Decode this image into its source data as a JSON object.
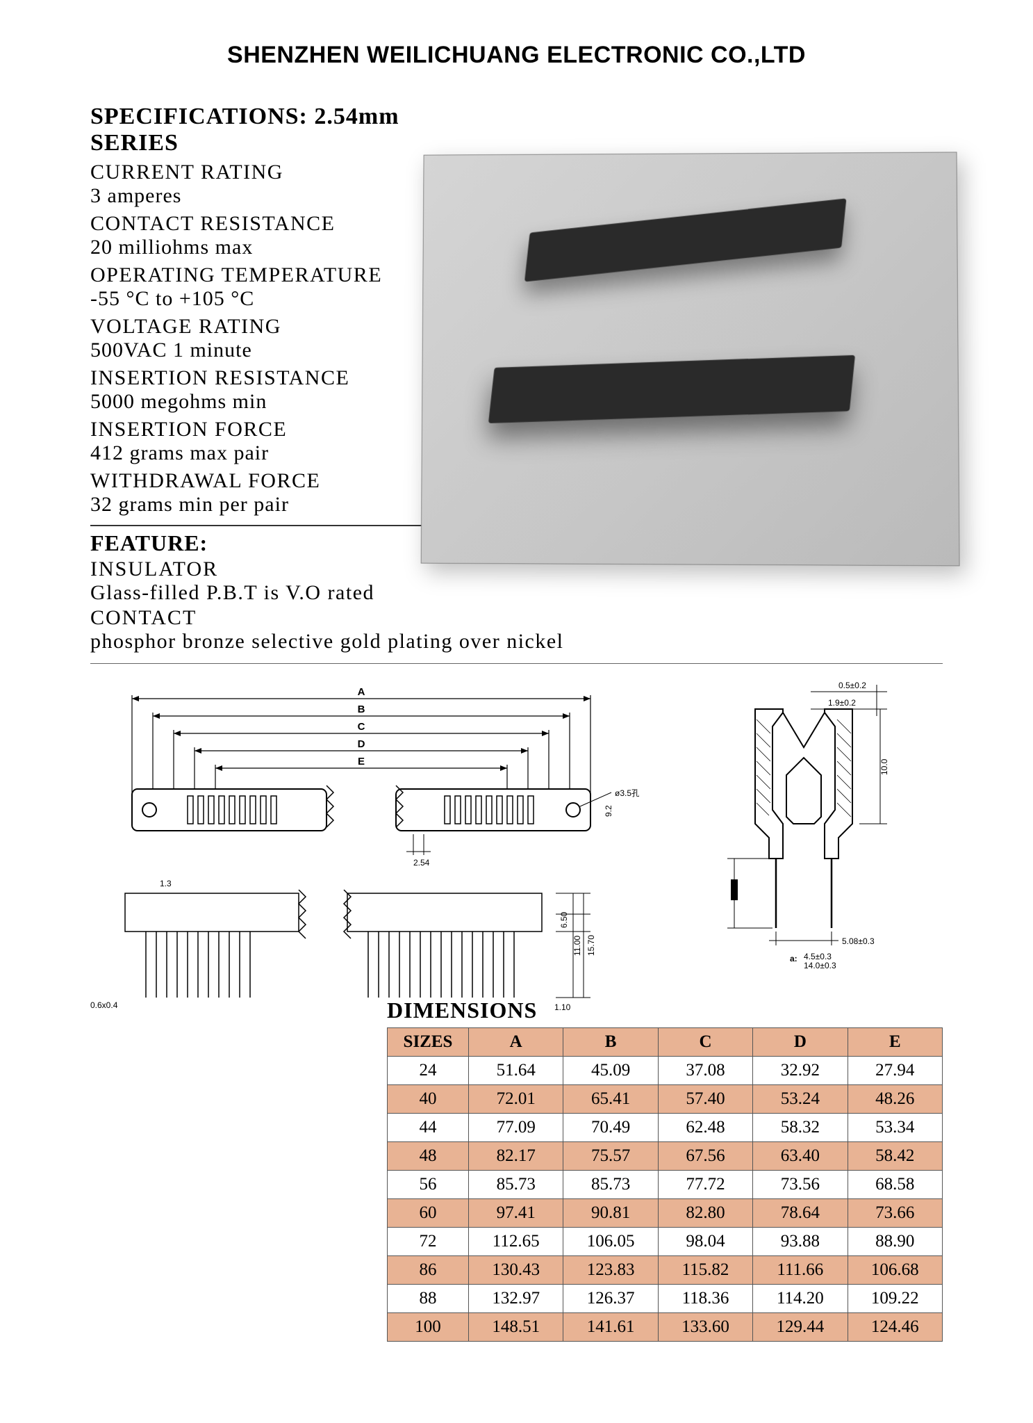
{
  "company": "SHENZHEN WEILICHUANG ELECTRONIC CO.,LTD",
  "spec_heading": "SPECIFICATIONS: 2.54mm SERIES",
  "specs": {
    "current_rating_label": "CURRENT RATING",
    "current_rating_value": "3 amperes",
    "contact_resistance_label": "CONTACT RESISTANCE",
    "contact_resistance_value": "20 milliohms max",
    "operating_temp_label": "OPERATING TEMPERATURE",
    "operating_temp_value": "-55 °C to +105 °C",
    "voltage_rating_label": "VOLTAGE RATING",
    "voltage_rating_value": "500VAC 1 minute",
    "insertion_resistance_label": "INSERTION RESISTANCE",
    "insertion_resistance_value": "5000 megohms min",
    "insertion_force_label": "INSERTION FORCE",
    "insertion_force_value": "412 grams max pair",
    "withdrawal_force_label": "WITHDRAWAL FORCE",
    "withdrawal_force_value": "32 grams min per pair"
  },
  "feature_heading": "FEATURE:",
  "features": {
    "insulator_label": "INSULATOR",
    "insulator_value": "Glass-filled P.B.T is V.O rated",
    "contact_label": "CONTACT",
    "contact_value": "phosphor bronze selective gold plating over nickel"
  },
  "diagram": {
    "labels": [
      "A",
      "B",
      "C",
      "D",
      "E"
    ],
    "d_3_5": "ø3.5孔",
    "d_9_2": "9.2",
    "d_2_54": "2.54",
    "d_1_3": "1.3",
    "d_0_6x0_4": "0.6x0.4",
    "d_6_50": "6.50",
    "d_11_00": "11.00",
    "d_15_70": "15.70",
    "d_1_10": "1.10",
    "d_0_5": "0.5±0.2",
    "d_1_9": "1.9±0.2",
    "d_10_0": "10.0",
    "d_5_08": "5.08±0.3",
    "d_a_line1": "4.5±0.3",
    "d_a_line2": "14.0±0.3",
    "d_a_prefix": "a:"
  },
  "dim_heading": "DIMENSIONS",
  "table": {
    "columns": [
      "SIZES",
      "A",
      "B",
      "C",
      "D",
      "E"
    ],
    "rows": [
      [
        "24",
        "51.64",
        "45.09",
        "37.08",
        "32.92",
        "27.94"
      ],
      [
        "40",
        "72.01",
        "65.41",
        "57.40",
        "53.24",
        "48.26"
      ],
      [
        "44",
        "77.09",
        "70.49",
        "62.48",
        "58.32",
        "53.34"
      ],
      [
        "48",
        "82.17",
        "75.57",
        "67.56",
        "63.40",
        "58.42"
      ],
      [
        "56",
        "85.73",
        "85.73",
        "77.72",
        "73.56",
        "68.58"
      ],
      [
        "60",
        "97.41",
        "90.81",
        "82.80",
        "78.64",
        "73.66"
      ],
      [
        "72",
        "112.65",
        "106.05",
        "98.04",
        "93.88",
        "88.90"
      ],
      [
        "86",
        "130.43",
        "123.83",
        "115.82",
        "111.66",
        "106.68"
      ],
      [
        "88",
        "132.97",
        "126.37",
        "118.36",
        "114.20",
        "109.22"
      ],
      [
        "100",
        "148.51",
        "141.61",
        "133.60",
        "129.44",
        "124.46"
      ]
    ],
    "header_bg": "#e8b394",
    "row_alt_bg": "#e8b394",
    "row_bg": "#ffffff",
    "border_color": "#555555"
  }
}
